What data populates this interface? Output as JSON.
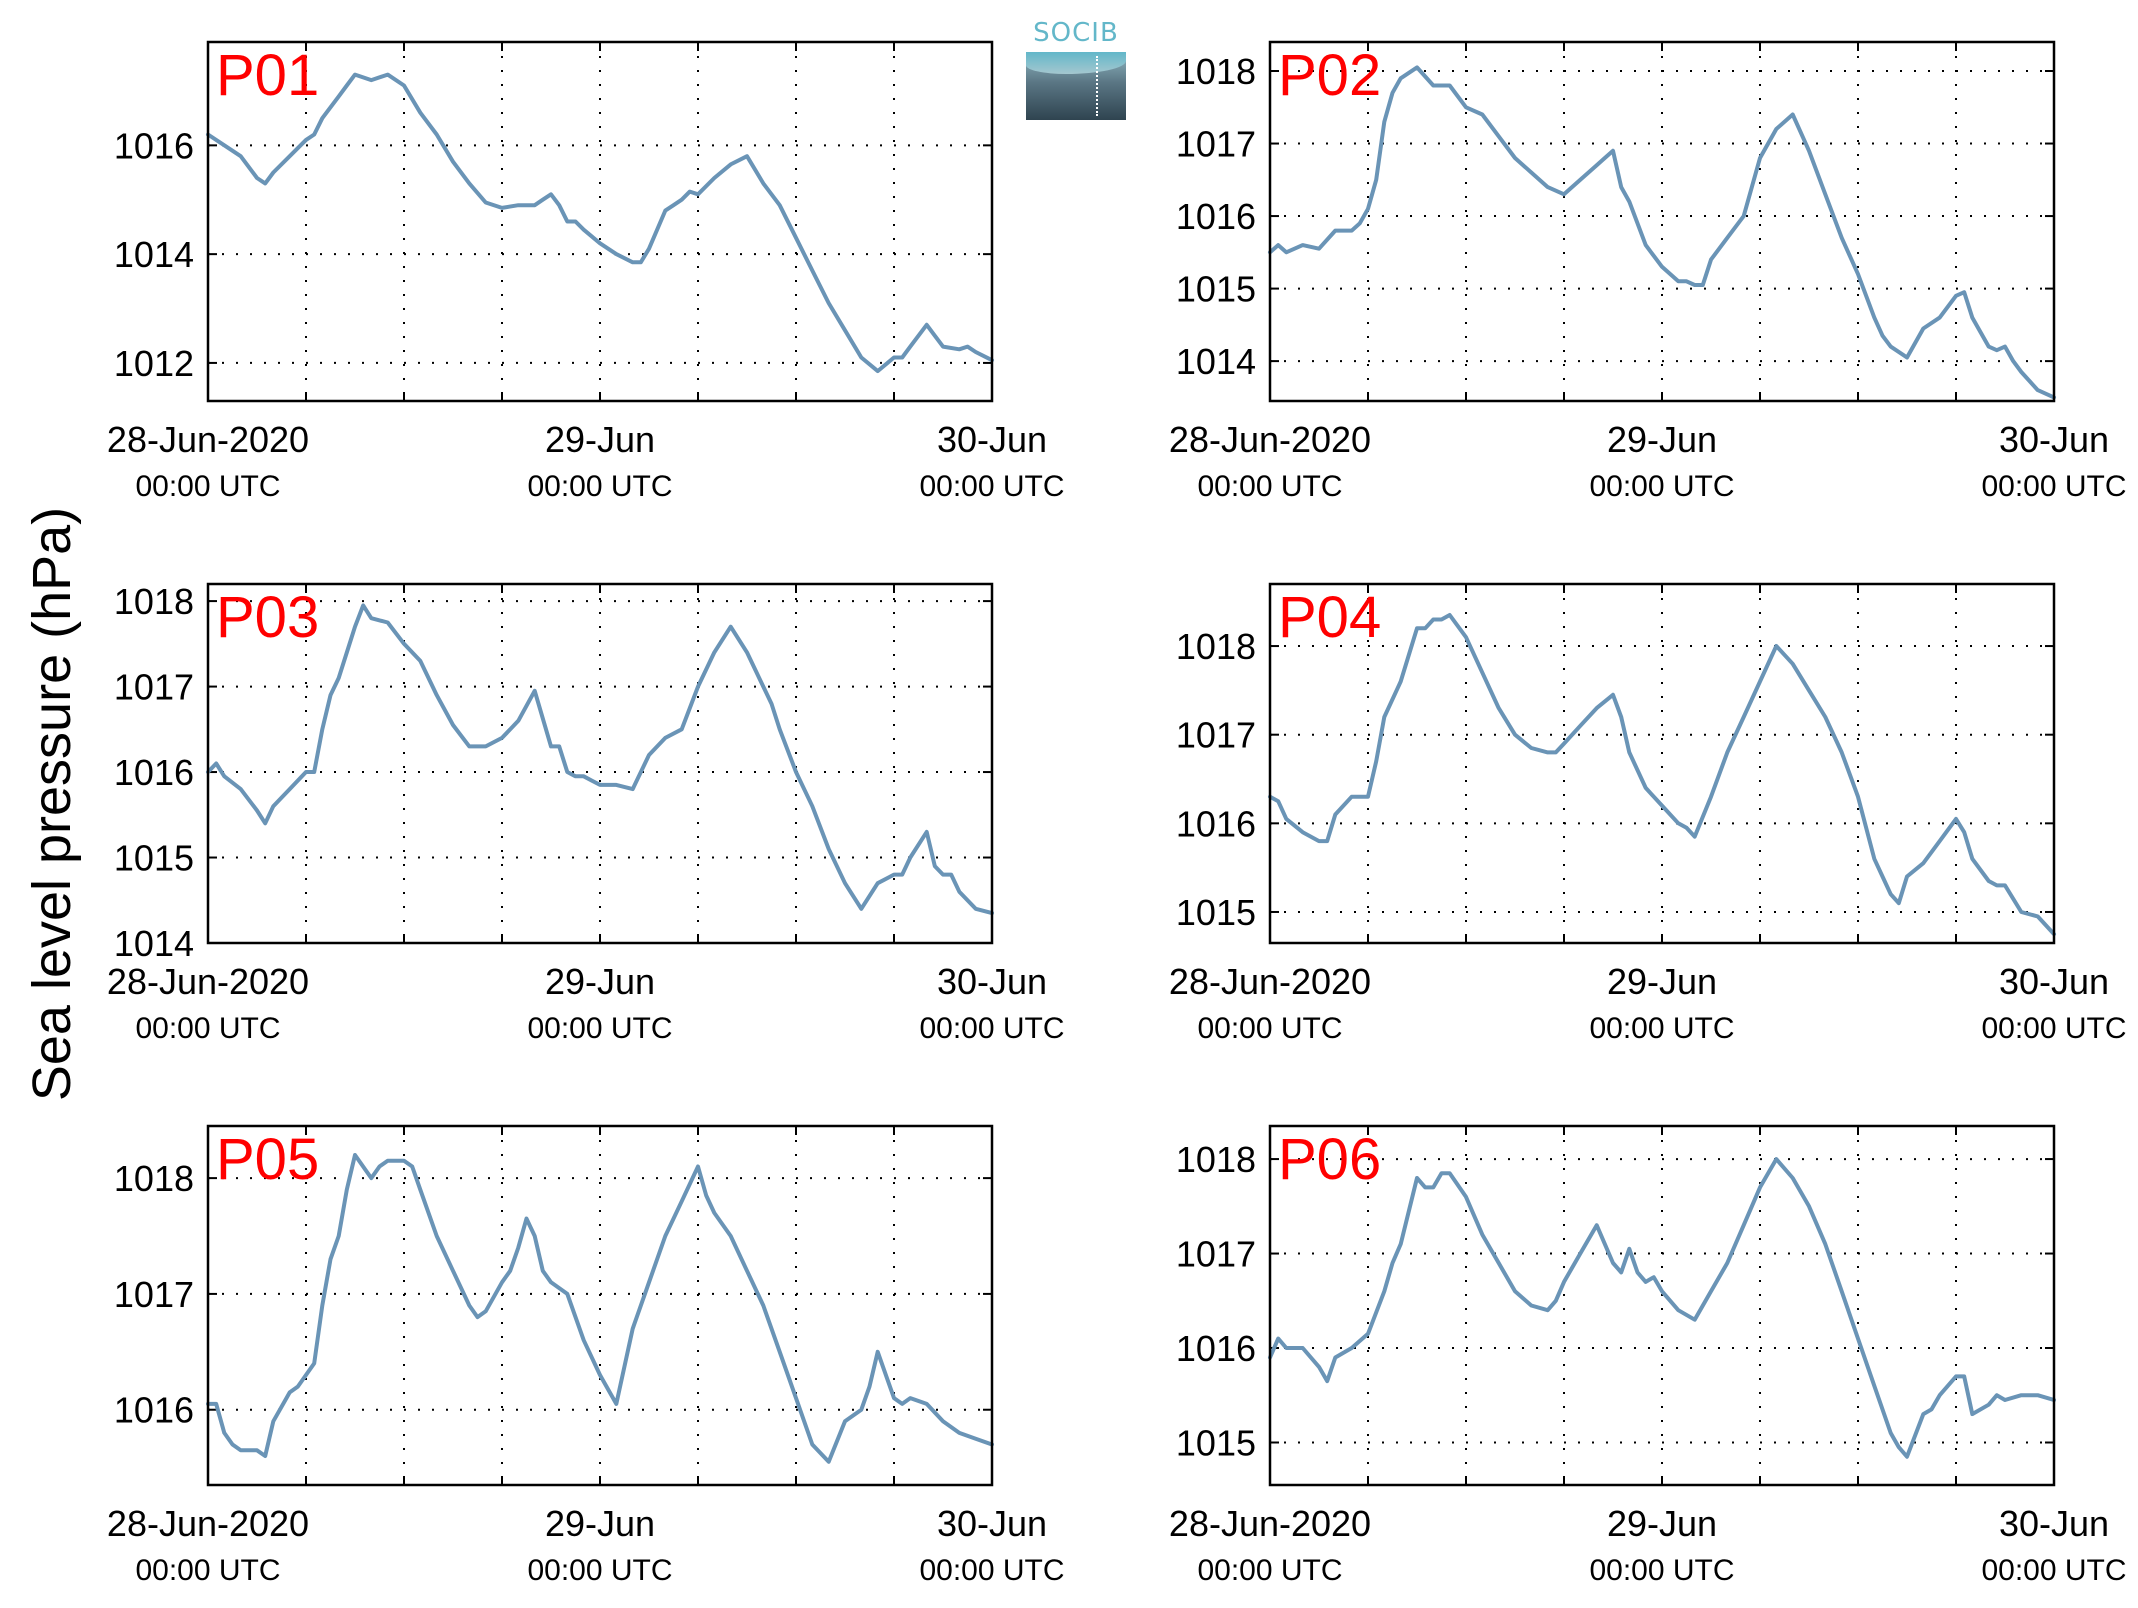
{
  "logo": {
    "text": "SOCIB"
  },
  "ylabel": "Sea level pressure (hPa)",
  "colors": {
    "line": "#6a94b6",
    "panel_label": "#ff0000",
    "axis": "#000000",
    "grid": "#000000"
  },
  "x_ticks": [
    {
      "line1": "28-Jun-2020",
      "line2": "00:00 UTC"
    },
    {
      "line1": "29-Jun",
      "line2": "00:00 UTC"
    },
    {
      "line1": "30-Jun",
      "line2": "00:00 UTC"
    }
  ],
  "chart_data": [
    {
      "type": "line",
      "label": "P01",
      "x_unit": "hours since 28-Jun-2020 00:00 UTC",
      "xlim": [
        0,
        48
      ],
      "ylim": [
        1011.3,
        1017.9
      ],
      "yticks": [
        1012,
        1014,
        1016
      ],
      "x": [
        0,
        1,
        2,
        3,
        3.5,
        4,
        5,
        6,
        6.5,
        7,
        8,
        8.5,
        9,
        10,
        11,
        12,
        13,
        14,
        15,
        16,
        17,
        18,
        19,
        20,
        20.5,
        21,
        21.5,
        22,
        22.5,
        23,
        24,
        25,
        26,
        26.5,
        27,
        28,
        28.5,
        29,
        29.5,
        30,
        31,
        32,
        33,
        34,
        35,
        36,
        37,
        38,
        39,
        40,
        41,
        42,
        42.5,
        43,
        44,
        44.5,
        45,
        46,
        46.5,
        47,
        48
      ],
      "y": [
        1016.2,
        1016.0,
        1015.8,
        1015.4,
        1015.3,
        1015.5,
        1015.8,
        1016.1,
        1016.2,
        1016.5,
        1016.9,
        1017.1,
        1017.3,
        1017.2,
        1017.3,
        1017.1,
        1016.6,
        1016.2,
        1015.7,
        1015.3,
        1014.95,
        1014.85,
        1014.9,
        1014.9,
        1015.0,
        1015.1,
        1014.9,
        1014.6,
        1014.6,
        1014.45,
        1014.2,
        1014.0,
        1013.85,
        1013.85,
        1014.1,
        1014.8,
        1014.9,
        1015.0,
        1015.15,
        1015.1,
        1015.4,
        1015.65,
        1015.8,
        1015.3,
        1014.9,
        1014.3,
        1013.7,
        1013.1,
        1012.6,
        1012.1,
        1011.85,
        1012.1,
        1012.1,
        1012.3,
        1012.7,
        1012.5,
        1012.3,
        1012.25,
        1012.3,
        1012.2,
        1012.05
      ]
    },
    {
      "type": "line",
      "label": "P02",
      "x_unit": "hours since 28-Jun-2020 00:00 UTC",
      "xlim": [
        0,
        48
      ],
      "ylim": [
        1013.45,
        1018.4
      ],
      "yticks": [
        1014,
        1015,
        1016,
        1017,
        1018
      ],
      "x": [
        0,
        0.5,
        1,
        2,
        3,
        4,
        5,
        5.5,
        6,
        6.5,
        7,
        7.5,
        8,
        9,
        10,
        11,
        12,
        13,
        14,
        15,
        16,
        17,
        18,
        19,
        20,
        20.5,
        21,
        21.5,
        22,
        23,
        24,
        25,
        25.5,
        26,
        26.5,
        27,
        28,
        29,
        30,
        31,
        32,
        33,
        34,
        35,
        36,
        37,
        37.5,
        38,
        39,
        40,
        41,
        42,
        42.5,
        43,
        44,
        44.5,
        45,
        45.5,
        46,
        47,
        48
      ],
      "y": [
        1015.5,
        1015.6,
        1015.5,
        1015.6,
        1015.55,
        1015.8,
        1015.8,
        1015.9,
        1016.1,
        1016.5,
        1017.3,
        1017.7,
        1017.9,
        1018.05,
        1017.8,
        1017.8,
        1017.5,
        1017.4,
        1017.1,
        1016.8,
        1016.6,
        1016.4,
        1016.3,
        1016.5,
        1016.7,
        1016.8,
        1016.9,
        1016.4,
        1016.2,
        1015.6,
        1015.3,
        1015.1,
        1015.1,
        1015.05,
        1015.05,
        1015.4,
        1015.7,
        1016.0,
        1016.8,
        1017.2,
        1017.4,
        1016.9,
        1016.3,
        1015.7,
        1015.2,
        1014.6,
        1014.35,
        1014.2,
        1014.05,
        1014.45,
        1014.6,
        1014.9,
        1014.95,
        1014.6,
        1014.2,
        1014.15,
        1014.2,
        1014.0,
        1013.85,
        1013.6,
        1013.5
      ]
    },
    {
      "type": "line",
      "label": "P03",
      "x_unit": "hours since 28-Jun-2020 00:00 UTC",
      "xlim": [
        0,
        48
      ],
      "ylim": [
        1014.0,
        1018.2
      ],
      "yticks": [
        1014,
        1015,
        1016,
        1017,
        1018
      ],
      "x": [
        0,
        0.5,
        1,
        2,
        3,
        3.5,
        4,
        5,
        6,
        6.5,
        7,
        7.5,
        8,
        9,
        9.5,
        10,
        11,
        12,
        13,
        14,
        15,
        16,
        17,
        18,
        19,
        20,
        21,
        21.5,
        22,
        22.5,
        23,
        23.5,
        24,
        25,
        26,
        27,
        27.5,
        28,
        29,
        30,
        31,
        32,
        33,
        34,
        34.5,
        35,
        36,
        37,
        38,
        39,
        40,
        41,
        42,
        42.5,
        43,
        44,
        44.5,
        45,
        45.5,
        46,
        47,
        48
      ],
      "y": [
        1016.0,
        1016.1,
        1015.95,
        1015.8,
        1015.55,
        1015.4,
        1015.6,
        1015.8,
        1016.0,
        1016.0,
        1016.5,
        1016.9,
        1017.1,
        1017.7,
        1017.95,
        1017.8,
        1017.75,
        1017.5,
        1017.3,
        1016.9,
        1016.55,
        1016.3,
        1016.3,
        1016.4,
        1016.6,
        1016.95,
        1016.3,
        1016.3,
        1016.0,
        1015.95,
        1015.95,
        1015.9,
        1015.85,
        1015.85,
        1015.8,
        1016.2,
        1016.3,
        1016.4,
        1016.5,
        1017.0,
        1017.4,
        1017.7,
        1017.4,
        1017.0,
        1016.8,
        1016.5,
        1016.0,
        1015.6,
        1015.1,
        1014.7,
        1014.4,
        1014.7,
        1014.8,
        1014.8,
        1015.0,
        1015.3,
        1014.9,
        1014.8,
        1014.8,
        1014.6,
        1014.4,
        1014.35
      ]
    },
    {
      "type": "line",
      "label": "P04",
      "x_unit": "hours since 28-Jun-2020 00:00 UTC",
      "xlim": [
        0,
        48
      ],
      "ylim": [
        1014.65,
        1018.7
      ],
      "yticks": [
        1015,
        1016,
        1017,
        1018
      ],
      "x": [
        0,
        0.5,
        1,
        2,
        3,
        3.5,
        4,
        5,
        6,
        6.5,
        7,
        8,
        9,
        9.5,
        10,
        10.5,
        11,
        12,
        13,
        14,
        15,
        16,
        17,
        17.5,
        18,
        19,
        20,
        21,
        21.5,
        22,
        23,
        24,
        25,
        25.5,
        26,
        27,
        28,
        29,
        30,
        31,
        32,
        33,
        34,
        35,
        36,
        37,
        37.5,
        38,
        38.5,
        39,
        40,
        41,
        42,
        42.5,
        43,
        44,
        44.5,
        45,
        46,
        47,
        48
      ],
      "y": [
        1016.3,
        1016.25,
        1016.05,
        1015.9,
        1015.8,
        1015.8,
        1016.1,
        1016.3,
        1016.3,
        1016.7,
        1017.2,
        1017.6,
        1018.2,
        1018.2,
        1018.3,
        1018.3,
        1018.35,
        1018.1,
        1017.7,
        1017.3,
        1017.0,
        1016.85,
        1016.8,
        1016.8,
        1016.9,
        1017.1,
        1017.3,
        1017.45,
        1017.2,
        1016.8,
        1016.4,
        1016.2,
        1016.0,
        1015.95,
        1015.85,
        1016.3,
        1016.8,
        1017.2,
        1017.6,
        1018.0,
        1017.8,
        1017.5,
        1017.2,
        1016.8,
        1016.3,
        1015.6,
        1015.4,
        1015.2,
        1015.1,
        1015.4,
        1015.55,
        1015.8,
        1016.05,
        1015.9,
        1015.6,
        1015.35,
        1015.3,
        1015.3,
        1015.0,
        1014.95,
        1014.75
      ]
    },
    {
      "type": "line",
      "label": "P05",
      "x_unit": "hours since 28-Jun-2020 00:00 UTC",
      "xlim": [
        0,
        48
      ],
      "ylim": [
        1015.35,
        1018.45
      ],
      "yticks": [
        1016,
        1017,
        1018
      ],
      "x": [
        0,
        0.5,
        1,
        1.5,
        2,
        3,
        3.5,
        4,
        5,
        5.5,
        6,
        6.5,
        7,
        7.5,
        8,
        8.5,
        9,
        10,
        10.5,
        11,
        12,
        12.5,
        13,
        14,
        15,
        16,
        16.5,
        17,
        18,
        18.5,
        19,
        19.5,
        20,
        20.5,
        21,
        22,
        23,
        24,
        25,
        26,
        27,
        28,
        29,
        30,
        30.5,
        31,
        32,
        33,
        34,
        35,
        36,
        37,
        38,
        39,
        40,
        40.5,
        41,
        42,
        42.5,
        43,
        44,
        45,
        46,
        47,
        48
      ],
      "y": [
        1016.05,
        1016.05,
        1015.8,
        1015.7,
        1015.65,
        1015.65,
        1015.6,
        1015.9,
        1016.15,
        1016.2,
        1016.3,
        1016.4,
        1016.9,
        1017.3,
        1017.5,
        1017.9,
        1018.2,
        1018.0,
        1018.1,
        1018.15,
        1018.15,
        1018.1,
        1017.9,
        1017.5,
        1017.2,
        1016.9,
        1016.8,
        1016.85,
        1017.1,
        1017.2,
        1017.4,
        1017.65,
        1017.5,
        1017.2,
        1017.1,
        1017.0,
        1016.6,
        1016.3,
        1016.05,
        1016.7,
        1017.1,
        1017.5,
        1017.8,
        1018.1,
        1017.85,
        1017.7,
        1017.5,
        1017.2,
        1016.9,
        1016.5,
        1016.1,
        1015.7,
        1015.55,
        1015.9,
        1016.0,
        1016.2,
        1016.5,
        1016.1,
        1016.05,
        1016.1,
        1016.05,
        1015.9,
        1015.8,
        1015.75,
        1015.7
      ]
    },
    {
      "type": "line",
      "label": "P06",
      "x_unit": "hours since 28-Jun-2020 00:00 UTC",
      "xlim": [
        0,
        48
      ],
      "ylim": [
        1014.55,
        1018.35
      ],
      "yticks": [
        1015,
        1016,
        1017,
        1018
      ],
      "x": [
        0,
        0.5,
        1,
        2,
        3,
        3.5,
        4,
        5,
        6,
        7,
        7.5,
        8,
        9,
        9.5,
        10,
        10.5,
        11,
        12,
        13,
        14,
        15,
        16,
        17,
        17.5,
        18,
        19,
        20,
        21,
        21.5,
        22,
        22.5,
        23,
        23.5,
        24,
        25,
        26,
        27,
        28,
        29,
        30,
        31,
        32,
        33,
        34,
        35,
        36,
        37,
        38,
        38.5,
        39,
        40,
        40.5,
        41,
        42,
        42.5,
        43,
        44,
        44.5,
        45,
        46,
        47,
        48
      ],
      "y": [
        1015.9,
        1016.1,
        1016.0,
        1016.0,
        1015.8,
        1015.65,
        1015.9,
        1016.0,
        1016.15,
        1016.6,
        1016.9,
        1017.1,
        1017.8,
        1017.7,
        1017.7,
        1017.85,
        1017.85,
        1017.6,
        1017.2,
        1016.9,
        1016.6,
        1016.45,
        1016.4,
        1016.5,
        1016.7,
        1017.0,
        1017.3,
        1016.9,
        1016.8,
        1017.05,
        1016.8,
        1016.7,
        1016.75,
        1016.6,
        1016.4,
        1016.3,
        1016.6,
        1016.9,
        1017.3,
        1017.7,
        1018.0,
        1017.8,
        1017.5,
        1017.1,
        1016.6,
        1016.1,
        1015.6,
        1015.1,
        1014.95,
        1014.85,
        1015.3,
        1015.35,
        1015.5,
        1015.7,
        1015.7,
        1015.3,
        1015.4,
        1015.5,
        1015.45,
        1015.5,
        1015.5,
        1015.45
      ]
    }
  ]
}
